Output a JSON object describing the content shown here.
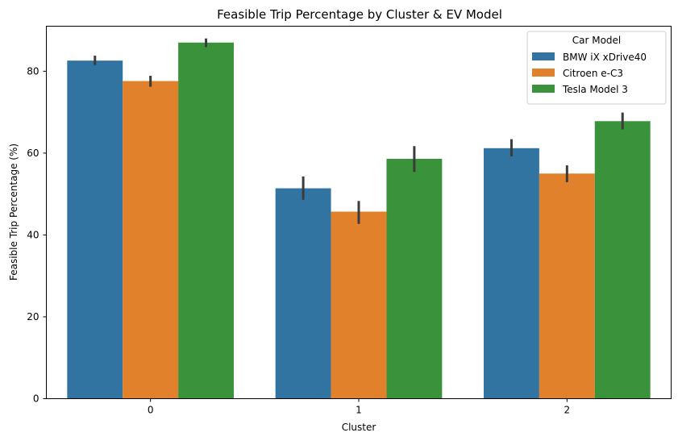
{
  "chart_data": {
    "type": "bar",
    "title": "Feasible Trip Percentage by Cluster & EV Model",
    "xlabel": "Cluster",
    "ylabel": "Feasible Trip Percentage (%)",
    "categories": [
      "0",
      "1",
      "2"
    ],
    "ylim": [
      0,
      91
    ],
    "yticks": [
      0,
      20,
      40,
      60,
      80
    ],
    "grid": false,
    "legend": {
      "title": "Car Model",
      "placement": "top-right"
    },
    "series": [
      {
        "name": "BMW iX xDrive40",
        "color": "#3274a1",
        "values": [
          82.6,
          51.4,
          61.2
        ],
        "ci": [
          [
            81.5,
            83.8
          ],
          [
            48.6,
            54.3
          ],
          [
            59.2,
            63.4
          ]
        ]
      },
      {
        "name": "Citroen e-C3",
        "color": "#e1812c",
        "values": [
          77.6,
          45.7,
          55.0
        ],
        "ci": [
          [
            76.2,
            78.9
          ],
          [
            42.7,
            48.3
          ],
          [
            52.9,
            57.0
          ]
        ]
      },
      {
        "name": "Tesla Model 3",
        "color": "#3a923a",
        "values": [
          87.0,
          58.6,
          67.8
        ],
        "ci": [
          [
            85.9,
            88.0
          ],
          [
            55.4,
            61.7
          ],
          [
            65.8,
            69.9
          ]
        ]
      }
    ],
    "errorbar_color": "#3b3b3b"
  }
}
